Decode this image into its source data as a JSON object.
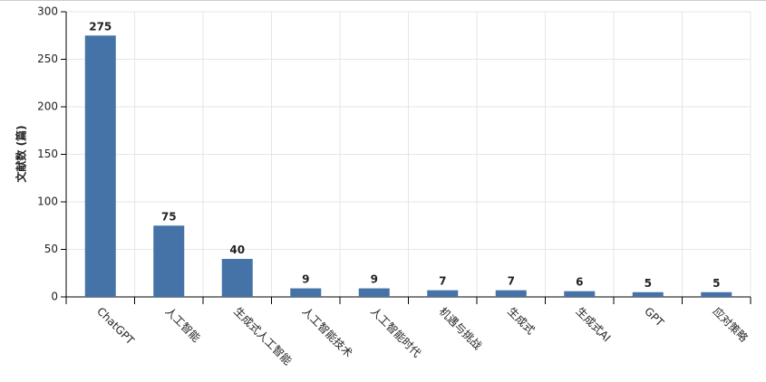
{
  "chart_data": {
    "type": "bar",
    "y_label": "文献数 (篇)",
    "categories": [
      "ChatGPT",
      "人工智能",
      "生成式人工智能",
      "人工智能技术",
      "人工智能时代",
      "机遇与挑战",
      "生成式",
      "生成式AI",
      "GPT",
      "应对策略"
    ],
    "values": [
      275,
      75,
      40,
      9,
      9,
      7,
      7,
      6,
      5,
      5
    ],
    "color": "#4573a8",
    "ylim": [
      0,
      300
    ],
    "yticks": [
      0,
      50,
      100,
      150,
      200,
      250,
      300
    ],
    "grid": true
  }
}
